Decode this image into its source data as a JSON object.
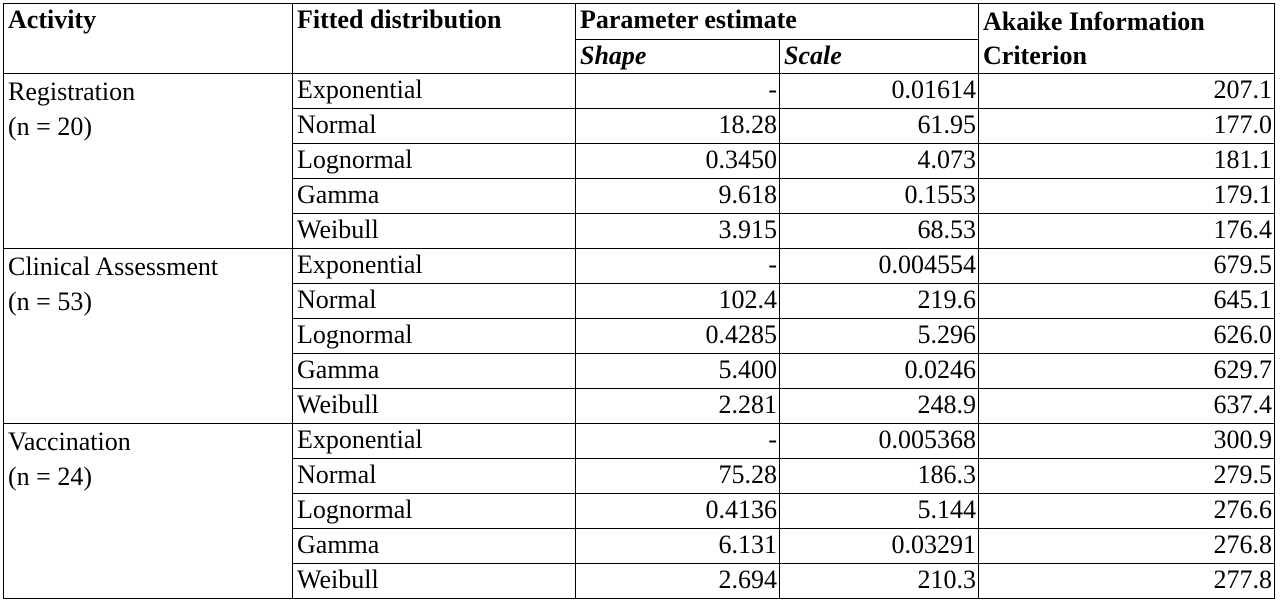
{
  "headers": {
    "activity": "Activity",
    "distribution": "Fitted distribution",
    "parameter": "Parameter estimate",
    "shape": "Shape",
    "scale": "Scale",
    "aic_line1": "Akaike Information",
    "aic_line2": "Criterion"
  },
  "groups": [
    {
      "activity": "Registration",
      "n": "(n = 20)",
      "rows": [
        {
          "dist": "Exponential",
          "shape": "-",
          "scale": "0.01614",
          "aic": "207.1"
        },
        {
          "dist": "Normal",
          "shape": "18.28",
          "scale": "61.95",
          "aic": "177.0"
        },
        {
          "dist": "Lognormal",
          "shape": "0.3450",
          "scale": "4.073",
          "aic": "181.1"
        },
        {
          "dist": "Gamma",
          "shape": "9.618",
          "scale": "0.1553",
          "aic": "179.1"
        },
        {
          "dist": "Weibull",
          "shape": "3.915",
          "scale": "68.53",
          "aic": "176.4"
        }
      ]
    },
    {
      "activity": "Clinical Assessment",
      "n": "(n = 53)",
      "rows": [
        {
          "dist": "Exponential",
          "shape": "-",
          "scale": "0.004554",
          "aic": "679.5"
        },
        {
          "dist": "Normal",
          "shape": "102.4",
          "scale": "219.6",
          "aic": "645.1"
        },
        {
          "dist": "Lognormal",
          "shape": "0.4285",
          "scale": "5.296",
          "aic": "626.0"
        },
        {
          "dist": "Gamma",
          "shape": "5.400",
          "scale": "0.0246",
          "aic": "629.7"
        },
        {
          "dist": "Weibull",
          "shape": "2.281",
          "scale": "248.9",
          "aic": "637.4"
        }
      ]
    },
    {
      "activity": "Vaccination",
      "n": "(n = 24)",
      "rows": [
        {
          "dist": "Exponential",
          "shape": "-",
          "scale": "0.005368",
          "aic": "300.9"
        },
        {
          "dist": "Normal",
          "shape": "75.28",
          "scale": "186.3",
          "aic": "279.5"
        },
        {
          "dist": "Lognormal",
          "shape": "0.4136",
          "scale": "5.144",
          "aic": "276.6"
        },
        {
          "dist": "Gamma",
          "shape": "6.131",
          "scale": "0.03291",
          "aic": "276.8"
        },
        {
          "dist": "Weibull",
          "shape": "2.694",
          "scale": "210.3",
          "aic": "277.8"
        }
      ]
    }
  ]
}
